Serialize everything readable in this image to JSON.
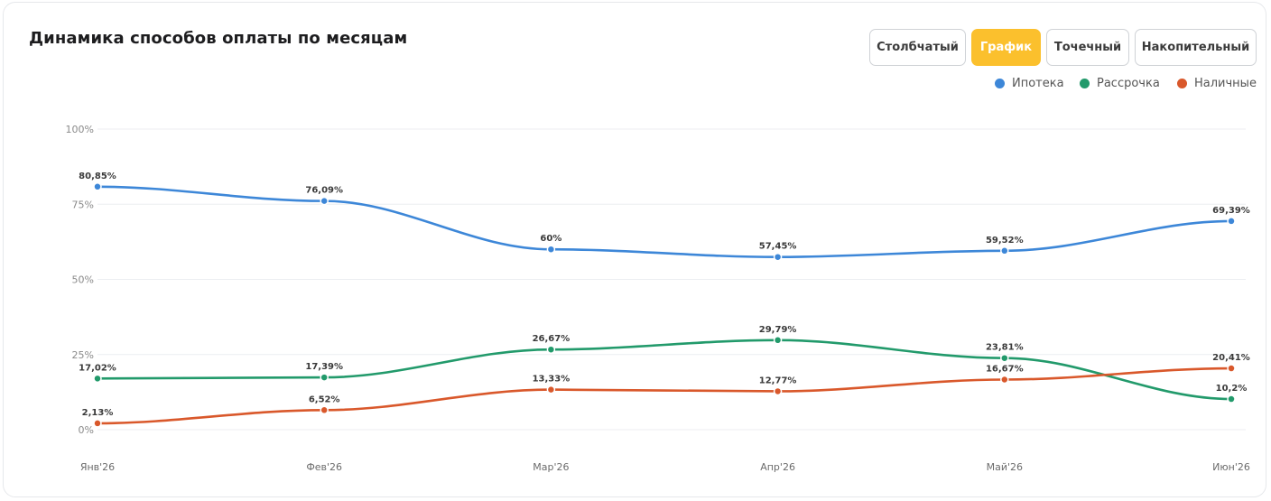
{
  "header": {
    "title": "Динамика способов оплаты по месяцам",
    "toggles": [
      "Столбчатый",
      "График",
      "Точечный",
      "Накопительный"
    ],
    "active_toggle": "График"
  },
  "chart_data": {
    "type": "line",
    "title": "Динамика способов оплаты по месяцам",
    "categories": [
      "Янв'26",
      "Фев'26",
      "Мар'26",
      "Апр'26",
      "Май'26",
      "Июн'26"
    ],
    "ylim": [
      0,
      100
    ],
    "yticks": [
      "0%",
      "25%",
      "50%",
      "75%",
      "100%"
    ],
    "grid": true,
    "legend_position": "top-right",
    "series": [
      {
        "name": "Ипотека",
        "color": "#3d87d8",
        "values": [
          80.85,
          76.09,
          60,
          57.45,
          59.52,
          69.39
        ],
        "labels": [
          "80,85%",
          "76,09%",
          "60%",
          "57,45%",
          "59,52%",
          "69,39%"
        ]
      },
      {
        "name": "Рассрочка",
        "color": "#229a6b",
        "values": [
          17.02,
          17.39,
          26.67,
          29.79,
          23.81,
          10.2
        ],
        "labels": [
          "17,02%",
          "17,39%",
          "26,67%",
          "29,79%",
          "23,81%",
          "10,2%"
        ]
      },
      {
        "name": "Наличные",
        "color": "#d9582b",
        "values": [
          2.13,
          6.52,
          13.33,
          12.77,
          16.67,
          20.41
        ],
        "labels": [
          "2,13%",
          "6,52%",
          "13,33%",
          "12,77%",
          "16,67%",
          "20,41%"
        ]
      }
    ]
  }
}
